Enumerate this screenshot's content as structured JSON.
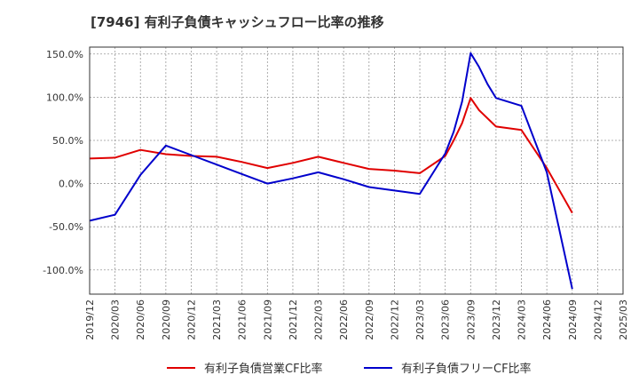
{
  "title": "[7946]  有利子負債キャッシュフロー比率の推移",
  "chart_data": {
    "type": "line",
    "title": "[7946]  有利子負債キャッシュフロー比率の推移",
    "xlabel": "",
    "ylabel": "",
    "x_ticks": [
      "2019/12",
      "2020/03",
      "2020/06",
      "2020/09",
      "2020/12",
      "2021/03",
      "2021/06",
      "2021/09",
      "2021/12",
      "2022/03",
      "2022/06",
      "2022/09",
      "2022/12",
      "2023/03",
      "2023/06",
      "2023/09",
      "2023/12",
      "2024/03",
      "2024/06",
      "2024/09",
      "2024/12",
      "2025/03"
    ],
    "y_ticks": [
      {
        "value": 150,
        "label": "150.0%"
      },
      {
        "value": 100,
        "label": "100.0%"
      },
      {
        "value": 50,
        "label": "50.0%"
      },
      {
        "value": 0,
        "label": "0.0%"
      },
      {
        "value": -50,
        "label": "-50.0%"
      },
      {
        "value": -100,
        "label": "-100.0%"
      }
    ],
    "ylim": [
      -128,
      158
    ],
    "grid": true,
    "legend_position": "bottom",
    "series": [
      {
        "name": "有利子負債営業CF比率",
        "color": "#e00000",
        "points": [
          [
            "2019/12",
            29
          ],
          [
            "2020/03",
            30
          ],
          [
            "2020/06",
            39
          ],
          [
            "2020/09",
            34
          ],
          [
            "2020/12",
            32
          ],
          [
            "2021/03",
            31
          ],
          [
            "2021/06",
            25
          ],
          [
            "2021/09",
            18
          ],
          [
            "2021/12",
            24
          ],
          [
            "2022/03",
            31
          ],
          [
            "2022/06",
            24
          ],
          [
            "2022/09",
            17
          ],
          [
            "2022/12",
            15
          ],
          [
            "2023/03",
            12
          ],
          [
            "2023/06",
            32
          ],
          [
            "2023/07",
            50
          ],
          [
            "2023/08",
            70
          ],
          [
            "2023/09",
            99
          ],
          [
            "2023/10",
            85
          ],
          [
            "2023/12",
            66
          ],
          [
            "2024/03",
            62
          ],
          [
            "2024/06",
            18
          ],
          [
            "2024/09",
            -34
          ]
        ]
      },
      {
        "name": "有利子負債フリーCF比率",
        "color": "#0000cc",
        "points": [
          [
            "2019/12",
            -43
          ],
          [
            "2020/03",
            -36
          ],
          [
            "2020/06",
            10
          ],
          [
            "2020/09",
            44
          ],
          [
            "2020/12",
            33
          ],
          [
            "2021/03",
            22
          ],
          [
            "2021/06",
            11
          ],
          [
            "2021/09",
            0
          ],
          [
            "2021/12",
            6
          ],
          [
            "2022/03",
            13
          ],
          [
            "2022/06",
            5
          ],
          [
            "2022/09",
            -4
          ],
          [
            "2022/12",
            -8
          ],
          [
            "2023/03",
            -12
          ],
          [
            "2023/06",
            35
          ],
          [
            "2023/07",
            60
          ],
          [
            "2023/08",
            95
          ],
          [
            "2023/09",
            151
          ],
          [
            "2023/10",
            135
          ],
          [
            "2023/11",
            115
          ],
          [
            "2023/12",
            99
          ],
          [
            "2024/03",
            90
          ],
          [
            "2024/06",
            13
          ],
          [
            "2024/09",
            -122
          ]
        ]
      }
    ]
  }
}
